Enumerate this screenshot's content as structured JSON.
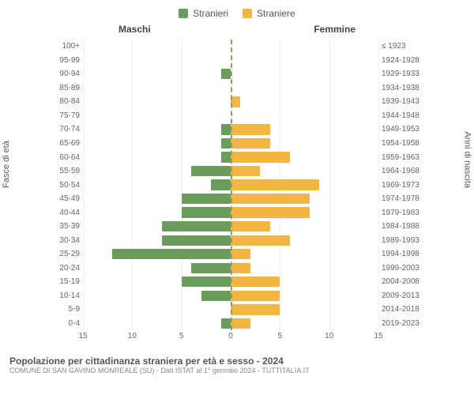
{
  "legend": {
    "male": "Stranieri",
    "female": "Straniere"
  },
  "colors": {
    "male": "#6b9c5e",
    "female": "#f2b742",
    "centerline": "#999966",
    "grid": "#eeeeee",
    "text": "#555555"
  },
  "side_titles": {
    "left": "Maschi",
    "right": "Femmine"
  },
  "axis_labels": {
    "left": "Fasce di età",
    "right": "Anni di nascita"
  },
  "chart": {
    "type": "population-pyramid",
    "x_max": 15,
    "x_ticks": [
      15,
      10,
      5,
      0,
      5,
      10,
      15
    ],
    "rows": [
      {
        "age": "100+",
        "birth": "≤ 1923",
        "m": 0,
        "f": 0
      },
      {
        "age": "95-99",
        "birth": "1924-1928",
        "m": 0,
        "f": 0
      },
      {
        "age": "90-94",
        "birth": "1929-1933",
        "m": 1,
        "f": 0
      },
      {
        "age": "85-89",
        "birth": "1934-1938",
        "m": 0,
        "f": 0
      },
      {
        "age": "80-84",
        "birth": "1939-1943",
        "m": 0,
        "f": 1
      },
      {
        "age": "75-79",
        "birth": "1944-1948",
        "m": 0,
        "f": 0
      },
      {
        "age": "70-74",
        "birth": "1949-1953",
        "m": 1,
        "f": 4
      },
      {
        "age": "65-69",
        "birth": "1954-1958",
        "m": 1,
        "f": 4
      },
      {
        "age": "60-64",
        "birth": "1959-1963",
        "m": 1,
        "f": 6
      },
      {
        "age": "55-59",
        "birth": "1964-1968",
        "m": 4,
        "f": 3
      },
      {
        "age": "50-54",
        "birth": "1969-1973",
        "m": 2,
        "f": 9
      },
      {
        "age": "45-49",
        "birth": "1974-1978",
        "m": 5,
        "f": 8
      },
      {
        "age": "40-44",
        "birth": "1979-1983",
        "m": 5,
        "f": 8
      },
      {
        "age": "35-39",
        "birth": "1984-1988",
        "m": 7,
        "f": 4
      },
      {
        "age": "30-34",
        "birth": "1989-1993",
        "m": 7,
        "f": 6
      },
      {
        "age": "25-29",
        "birth": "1994-1998",
        "m": 12,
        "f": 2
      },
      {
        "age": "20-24",
        "birth": "1999-2003",
        "m": 4,
        "f": 2
      },
      {
        "age": "15-19",
        "birth": "2004-2008",
        "m": 5,
        "f": 5
      },
      {
        "age": "10-14",
        "birth": "2009-2013",
        "m": 3,
        "f": 5
      },
      {
        "age": "5-9",
        "birth": "2014-2018",
        "m": 0,
        "f": 5
      },
      {
        "age": "0-4",
        "birth": "2019-2023",
        "m": 1,
        "f": 2
      }
    ]
  },
  "footer": {
    "title": "Popolazione per cittadinanza straniera per età e sesso - 2024",
    "subtitle": "COMUNE DI SAN GAVINO MONREALE (SU) - Dati ISTAT al 1° gennaio 2024 - TUTTITALIA.IT"
  }
}
